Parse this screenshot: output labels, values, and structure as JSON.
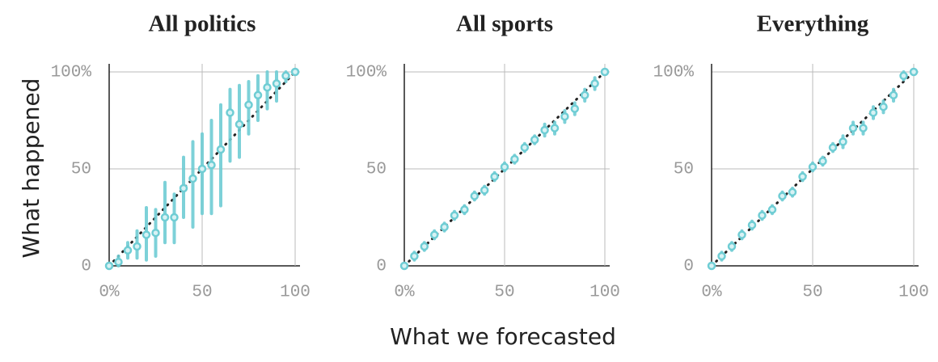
{
  "y_label": "What happened",
  "x_label": "What we forecasted",
  "chart_data": [
    {
      "type": "scatter",
      "title": "All politics",
      "color": "#6fcdd4",
      "x": [
        0,
        5,
        10,
        15,
        20,
        25,
        30,
        35,
        40,
        45,
        50,
        55,
        60,
        65,
        70,
        75,
        80,
        85,
        90,
        95,
        100
      ],
      "y": [
        0,
        2,
        8,
        10,
        16,
        17,
        25,
        25,
        40,
        45,
        50,
        52,
        60,
        79,
        73,
        83,
        88,
        92,
        94,
        98,
        100
      ],
      "low": [
        0,
        0,
        4,
        4,
        3,
        5,
        12,
        12,
        25,
        20,
        27,
        27,
        31,
        54,
        56,
        68,
        75,
        81,
        85,
        95,
        99
      ],
      "high": [
        1,
        5,
        12,
        18,
        30,
        29,
        43,
        37,
        56,
        64,
        68,
        75,
        83,
        91,
        93,
        95,
        98,
        100,
        100,
        100,
        100
      ],
      "xlim": [
        0,
        100
      ],
      "ylim": [
        0,
        100
      ],
      "xticks": [
        {
          "value": 0,
          "label": "0%"
        },
        50,
        100
      ],
      "yticks": [
        0,
        50,
        {
          "value": 100,
          "label": "100%"
        }
      ],
      "grid": true
    },
    {
      "type": "scatter",
      "title": "All sports",
      "color": "#6fcdd4",
      "x": [
        0,
        5,
        10,
        15,
        20,
        25,
        30,
        35,
        40,
        45,
        50,
        55,
        60,
        65,
        70,
        75,
        80,
        85,
        90,
        95,
        100
      ],
      "y": [
        0,
        5,
        10,
        16,
        20,
        26,
        29,
        36,
        39,
        46,
        51,
        55,
        61,
        65,
        70,
        71,
        77,
        81,
        88,
        94,
        100
      ],
      "low": [
        0,
        3,
        8,
        14,
        18,
        24,
        27,
        34,
        37,
        44,
        49,
        53,
        59,
        63,
        67,
        68,
        74,
        78,
        85,
        91,
        99
      ],
      "high": [
        1,
        7,
        12,
        18,
        22,
        28,
        31,
        38,
        41,
        48,
        53,
        57,
        63,
        67,
        73,
        74,
        80,
        84,
        91,
        97,
        100
      ],
      "xlim": [
        0,
        100
      ],
      "ylim": [
        0,
        100
      ],
      "xticks": [
        {
          "value": 0,
          "label": "0%"
        },
        50,
        100
      ],
      "yticks": [
        0,
        50,
        {
          "value": 100,
          "label": "100%"
        }
      ],
      "grid": true
    },
    {
      "type": "scatter",
      "title": "Everything",
      "color": "#6fcdd4",
      "x": [
        0,
        5,
        10,
        15,
        20,
        25,
        30,
        35,
        40,
        45,
        50,
        55,
        60,
        65,
        70,
        75,
        80,
        85,
        90,
        95,
        100
      ],
      "y": [
        0,
        5,
        10,
        16,
        21,
        26,
        29,
        36,
        38,
        46,
        51,
        54,
        61,
        64,
        71,
        71,
        79,
        82,
        88,
        98,
        100
      ],
      "low": [
        0,
        3,
        8,
        14,
        19,
        24,
        27,
        34,
        36,
        44,
        49,
        52,
        59,
        61,
        68,
        68,
        76,
        79,
        85,
        96,
        99
      ],
      "high": [
        1,
        7,
        12,
        18,
        23,
        28,
        31,
        38,
        40,
        48,
        53,
        56,
        63,
        67,
        74,
        74,
        82,
        85,
        91,
        100,
        100
      ],
      "xlim": [
        0,
        100
      ],
      "ylim": [
        0,
        100
      ],
      "xticks": [
        {
          "value": 0,
          "label": "0%"
        },
        50,
        100
      ],
      "yticks": [
        0,
        50,
        {
          "value": 100,
          "label": "100%"
        }
      ],
      "grid": true
    }
  ]
}
